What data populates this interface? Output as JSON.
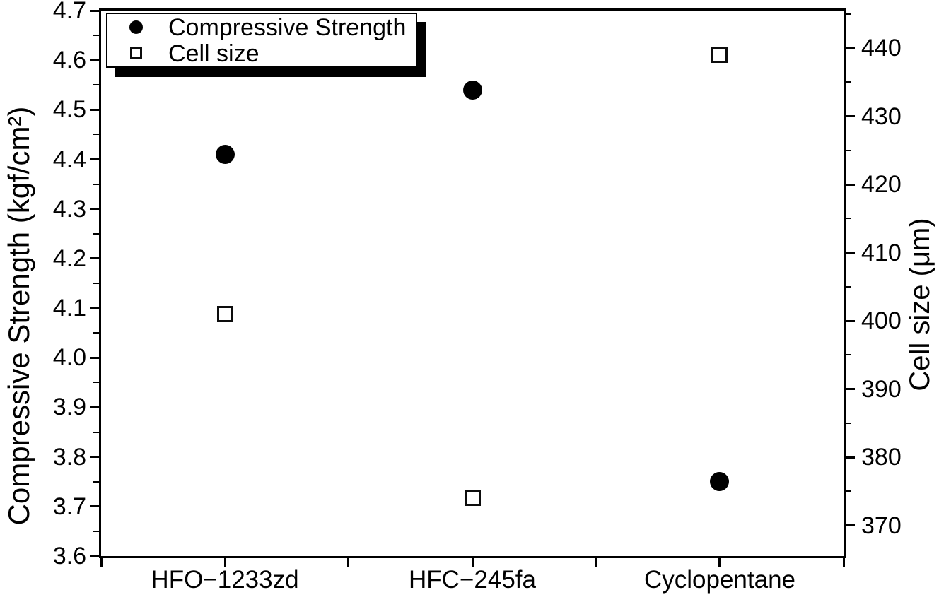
{
  "colors": {
    "foreground": "#000000",
    "background": "#ffffff",
    "legend_shadow": "#000000"
  },
  "chart_data": {
    "type": "scatter",
    "categories": [
      "HFO−1233zd",
      "HFC−245fa",
      "Cyclopentane"
    ],
    "series": [
      {
        "name": "Compressive Strength",
        "axis": "left",
        "marker": "filled-circle",
        "values": [
          4.41,
          4.54,
          3.75
        ]
      },
      {
        "name": "Cell size",
        "axis": "right",
        "marker": "open-square",
        "values": [
          401,
          374,
          439
        ]
      }
    ],
    "left_axis": {
      "label": "Compressive Strength (kgf/cm²)",
      "min": 3.6,
      "max": 4.7,
      "major_ticks": [
        3.6,
        3.7,
        3.8,
        3.9,
        4.0,
        4.1,
        4.2,
        4.3,
        4.4,
        4.5,
        4.6,
        4.7
      ],
      "minor_ticks": [
        3.65,
        3.75,
        3.85,
        3.95,
        4.05,
        4.15,
        4.25,
        4.35,
        4.45,
        4.55,
        4.65
      ],
      "tick_decimals": 1
    },
    "right_axis": {
      "label": "Cell size (μm)",
      "min": 365.5,
      "max": 445.5,
      "major_ticks": [
        370,
        380,
        390,
        400,
        410,
        420,
        430,
        440
      ],
      "minor_ticks": [
        375,
        385,
        395,
        405,
        415,
        425,
        435,
        445
      ],
      "tick_decimals": 0
    },
    "x_axis": {
      "category_positions": [
        0.166667,
        0.5,
        0.833333
      ],
      "tick_positions": [
        0,
        0.166667,
        0.333333,
        0.5,
        0.666667,
        0.833333,
        1
      ]
    },
    "legend": {
      "position": "top-left",
      "entries": [
        {
          "marker": "filled-circle",
          "label": "Compressive Strength"
        },
        {
          "marker": "open-square",
          "label": "Cell size"
        }
      ]
    },
    "grid": false
  }
}
